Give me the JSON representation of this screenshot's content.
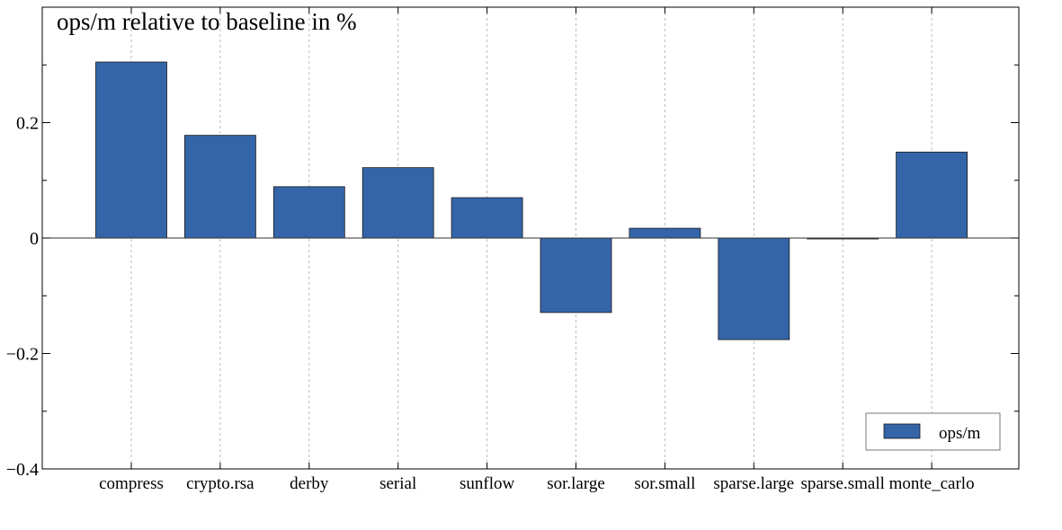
{
  "chart_data": {
    "type": "bar",
    "title": "ops/m relative to baseline in %",
    "categories": [
      "compress",
      "crypto.rsa",
      "derby",
      "serial",
      "sunflow",
      "sor.large",
      "sor.small",
      "sparse.large",
      "sparse.small",
      "monte_carlo"
    ],
    "series": [
      {
        "name": "ops/m",
        "values": [
          0.305,
          0.178,
          0.089,
          0.122,
          0.07,
          -0.129,
          0.017,
          -0.176,
          -0.001,
          0.149
        ]
      }
    ],
    "ylim": [
      -0.4,
      0.4
    ],
    "yticks": [
      -0.4,
      -0.2,
      0,
      0.2
    ],
    "ytick_labels": [
      "−0.4",
      "−0.2",
      "0",
      "0.2"
    ],
    "xlabel": "",
    "ylabel": "",
    "grid": "vertical-dashed",
    "legend_position": "bottom-right",
    "colors": {
      "bar": "#3465a8",
      "bar_edge": "#1a1a1a",
      "axis": "#000000",
      "grid": "#bbbbbb"
    }
  }
}
